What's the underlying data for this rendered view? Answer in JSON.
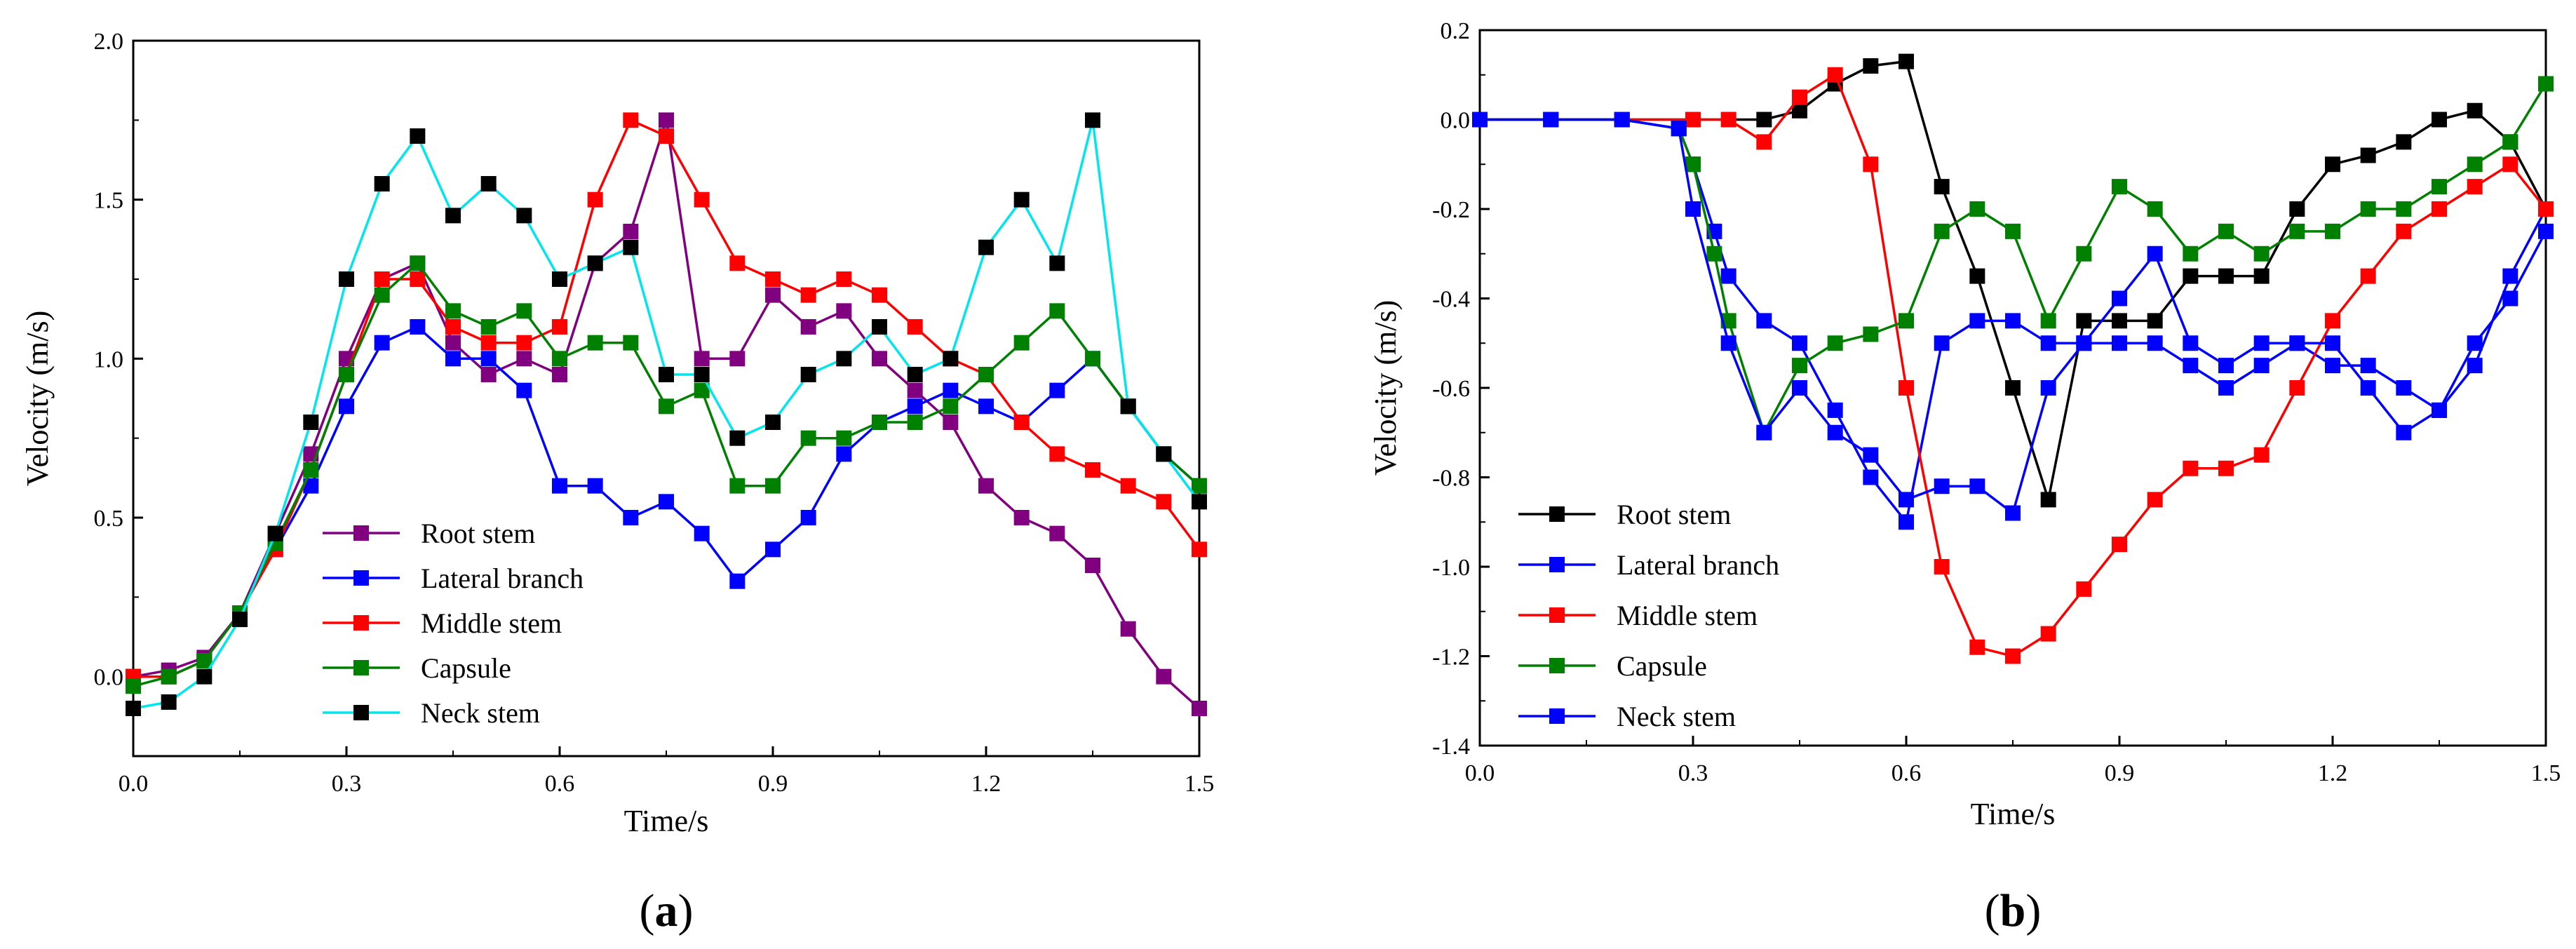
{
  "chart_data": [
    {
      "id": "a",
      "type": "line",
      "caption": {
        "open": "(",
        "letter": "a",
        "close": ")"
      },
      "xlabel": "Time/s",
      "ylabel": "Velocity (m/s)",
      "xlim": [
        0,
        1.5
      ],
      "ylim": [
        -0.25,
        2.0
      ],
      "xticks": [
        0.0,
        0.3,
        0.6,
        0.9,
        1.2,
        1.5
      ],
      "xtick_labels": [
        "0.0",
        "0.3",
        "0.6",
        "0.9",
        "1.2",
        "1.5"
      ],
      "yticks": [
        0.0,
        0.5,
        1.0,
        1.5,
        2.0
      ],
      "ytick_labels": [
        "0.0",
        "0.5",
        "1.0",
        "1.5",
        "2.0"
      ],
      "legend_position": "bottom-left",
      "series": [
        {
          "name": "Root stem",
          "line_color": "#800080",
          "marker_color": "#800080",
          "x": [
            0,
            0.05,
            0.1,
            0.15,
            0.2,
            0.25,
            0.3,
            0.35,
            0.4,
            0.45,
            0.5,
            0.55,
            0.6,
            0.65,
            0.7,
            0.75,
            0.8,
            0.85,
            0.9,
            0.95,
            1.0,
            1.05,
            1.1,
            1.15,
            1.2,
            1.25,
            1.3,
            1.35,
            1.4,
            1.45,
            1.5
          ],
          "y": [
            0,
            0.02,
            0.06,
            0.2,
            0.45,
            0.7,
            1.0,
            1.25,
            1.3,
            1.05,
            0.95,
            1.0,
            0.95,
            1.3,
            1.4,
            1.75,
            1.0,
            1.0,
            1.2,
            1.1,
            1.15,
            1.0,
            0.9,
            0.8,
            0.6,
            0.5,
            0.45,
            0.35,
            0.15,
            0.0,
            -0.1
          ]
        },
        {
          "name": "Lateral branch",
          "line_color": "#0000FF",
          "marker_color": "#0000FF",
          "x": [
            0,
            0.05,
            0.1,
            0.15,
            0.2,
            0.25,
            0.3,
            0.35,
            0.4,
            0.45,
            0.5,
            0.55,
            0.6,
            0.65,
            0.7,
            0.75,
            0.8,
            0.85,
            0.9,
            0.95,
            1.0,
            1.05,
            1.1,
            1.15,
            1.2,
            1.25,
            1.3,
            1.35,
            1.4,
            1.45,
            1.5
          ],
          "y": [
            0,
            0.0,
            0.05,
            0.2,
            0.4,
            0.6,
            0.85,
            1.05,
            1.1,
            1.0,
            1.0,
            0.9,
            0.6,
            0.6,
            0.5,
            0.55,
            0.45,
            0.3,
            0.4,
            0.5,
            0.7,
            0.8,
            0.85,
            0.9,
            0.85,
            0.8,
            0.9,
            1.0,
            0.85,
            0.7,
            0.6
          ]
        },
        {
          "name": "Middle stem",
          "line_color": "#FF0000",
          "marker_color": "#FF0000",
          "x": [
            0,
            0.05,
            0.1,
            0.15,
            0.2,
            0.25,
            0.3,
            0.35,
            0.4,
            0.45,
            0.5,
            0.55,
            0.6,
            0.65,
            0.7,
            0.75,
            0.8,
            0.85,
            0.9,
            0.95,
            1.0,
            1.05,
            1.1,
            1.15,
            1.2,
            1.25,
            1.3,
            1.35,
            1.4,
            1.45,
            1.5
          ],
          "y": [
            0,
            0.0,
            0.05,
            0.2,
            0.4,
            0.65,
            0.95,
            1.25,
            1.25,
            1.1,
            1.05,
            1.05,
            1.1,
            1.5,
            1.75,
            1.7,
            1.5,
            1.3,
            1.25,
            1.2,
            1.25,
            1.2,
            1.1,
            1.0,
            0.95,
            0.8,
            0.7,
            0.65,
            0.6,
            0.55,
            0.4
          ]
        },
        {
          "name": "Capsule",
          "line_color": "#008000",
          "marker_color": "#008000",
          "x": [
            0,
            0.05,
            0.1,
            0.15,
            0.2,
            0.25,
            0.3,
            0.35,
            0.4,
            0.45,
            0.5,
            0.55,
            0.6,
            0.65,
            0.7,
            0.75,
            0.8,
            0.85,
            0.9,
            0.95,
            1.0,
            1.05,
            1.1,
            1.15,
            1.2,
            1.25,
            1.3,
            1.35,
            1.4,
            1.45,
            1.5
          ],
          "y": [
            -0.03,
            0.0,
            0.05,
            0.2,
            0.42,
            0.65,
            0.95,
            1.2,
            1.3,
            1.15,
            1.1,
            1.15,
            1.0,
            1.05,
            1.05,
            0.85,
            0.9,
            0.6,
            0.6,
            0.75,
            0.75,
            0.8,
            0.8,
            0.85,
            0.95,
            1.05,
            1.15,
            1.0,
            0.85,
            0.7,
            0.6
          ]
        },
        {
          "name": "Neck stem",
          "line_color": "#00E5EE",
          "marker_color": "#000000",
          "x": [
            0,
            0.05,
            0.1,
            0.15,
            0.2,
            0.25,
            0.3,
            0.35,
            0.4,
            0.45,
            0.5,
            0.55,
            0.6,
            0.65,
            0.7,
            0.75,
            0.8,
            0.85,
            0.9,
            0.95,
            1.0,
            1.05,
            1.1,
            1.15,
            1.2,
            1.25,
            1.3,
            1.35,
            1.4,
            1.45,
            1.5
          ],
          "y": [
            -0.1,
            -0.08,
            0.0,
            0.18,
            0.45,
            0.8,
            1.25,
            1.55,
            1.7,
            1.45,
            1.55,
            1.45,
            1.25,
            1.3,
            1.35,
            0.95,
            0.95,
            0.75,
            0.8,
            0.95,
            1.0,
            1.1,
            0.95,
            1.0,
            1.35,
            1.5,
            1.3,
            1.75,
            0.85,
            0.7,
            0.55
          ]
        }
      ]
    },
    {
      "id": "b",
      "type": "line",
      "caption": {
        "open": "(",
        "letter": "b",
        "close": ")"
      },
      "xlabel": "Time/s",
      "ylabel": "Velocity (m/s)",
      "xlim": [
        0,
        1.5
      ],
      "ylim": [
        -1.4,
        0.2
      ],
      "xticks": [
        0.0,
        0.3,
        0.6,
        0.9,
        1.2,
        1.5
      ],
      "xtick_labels": [
        "0.0",
        "0.3",
        "0.6",
        "0.9",
        "1.2",
        "1.5"
      ],
      "yticks": [
        0.2,
        0.0,
        -0.2,
        -0.4,
        -0.6,
        -0.8,
        -1.0,
        -1.2,
        -1.4
      ],
      "ytick_labels": [
        "0.2",
        "0.0",
        "-0.2",
        "-0.4",
        "-0.6",
        "-0.8",
        "-1.0",
        "-1.2",
        "-1.4"
      ],
      "legend_position": "left",
      "series": [
        {
          "name": "Root stem",
          "line_color": "#000000",
          "marker_color": "#000000",
          "x": [
            0,
            0.1,
            0.2,
            0.3,
            0.4,
            0.45,
            0.5,
            0.55,
            0.6,
            0.65,
            0.7,
            0.75,
            0.8,
            0.85,
            0.9,
            0.95,
            1.0,
            1.05,
            1.1,
            1.15,
            1.2,
            1.25,
            1.3,
            1.35,
            1.4,
            1.45,
            1.5
          ],
          "y": [
            0,
            0,
            0,
            0,
            0,
            0.02,
            0.08,
            0.12,
            0.13,
            -0.15,
            -0.35,
            -0.6,
            -0.85,
            -0.45,
            -0.45,
            -0.45,
            -0.35,
            -0.35,
            -0.35,
            -0.2,
            -0.1,
            -0.08,
            -0.05,
            0.0,
            0.02,
            -0.05,
            -0.2
          ]
        },
        {
          "name": "Lateral branch",
          "line_color": "#0000FF",
          "marker_color": "#0000FF",
          "x": [
            0,
            0.1,
            0.2,
            0.28,
            0.3,
            0.33,
            0.35,
            0.4,
            0.45,
            0.5,
            0.55,
            0.6,
            0.65,
            0.7,
            0.75,
            0.8,
            0.85,
            0.9,
            0.95,
            1.0,
            1.05,
            1.1,
            1.15,
            1.2,
            1.25,
            1.3,
            1.35,
            1.4,
            1.45,
            1.5
          ],
          "y": [
            0,
            0,
            0,
            -0.02,
            -0.1,
            -0.25,
            -0.35,
            -0.45,
            -0.5,
            -0.65,
            -0.8,
            -0.9,
            -0.5,
            -0.45,
            -0.45,
            -0.5,
            -0.5,
            -0.4,
            -0.3,
            -0.5,
            -0.55,
            -0.5,
            -0.5,
            -0.55,
            -0.55,
            -0.6,
            -0.65,
            -0.55,
            -0.35,
            -0.2
          ]
        },
        {
          "name": "Middle stem",
          "line_color": "#FF0000",
          "marker_color": "#FF0000",
          "x": [
            0,
            0.1,
            0.2,
            0.3,
            0.35,
            0.4,
            0.45,
            0.5,
            0.55,
            0.6,
            0.65,
            0.7,
            0.75,
            0.8,
            0.85,
            0.9,
            0.95,
            1.0,
            1.05,
            1.1,
            1.15,
            1.2,
            1.25,
            1.3,
            1.35,
            1.4,
            1.45,
            1.5
          ],
          "y": [
            0,
            0,
            0,
            0,
            0.0,
            -0.05,
            0.05,
            0.1,
            -0.1,
            -0.6,
            -1.0,
            -1.18,
            -1.2,
            -1.15,
            -1.05,
            -0.95,
            -0.85,
            -0.78,
            -0.78,
            -0.75,
            -0.6,
            -0.45,
            -0.35,
            -0.25,
            -0.2,
            -0.15,
            -0.1,
            -0.2
          ]
        },
        {
          "name": "Capsule",
          "line_color": "#008000",
          "marker_color": "#008000",
          "x": [
            0,
            0.1,
            0.2,
            0.28,
            0.3,
            0.33,
            0.35,
            0.4,
            0.45,
            0.5,
            0.55,
            0.6,
            0.65,
            0.7,
            0.75,
            0.8,
            0.85,
            0.9,
            0.95,
            1.0,
            1.05,
            1.1,
            1.15,
            1.2,
            1.25,
            1.3,
            1.35,
            1.4,
            1.45,
            1.5
          ],
          "y": [
            0,
            0,
            0,
            -0.02,
            -0.1,
            -0.3,
            -0.45,
            -0.7,
            -0.55,
            -0.5,
            -0.48,
            -0.45,
            -0.25,
            -0.2,
            -0.25,
            -0.45,
            -0.3,
            -0.15,
            -0.2,
            -0.3,
            -0.25,
            -0.3,
            -0.25,
            -0.25,
            -0.2,
            -0.2,
            -0.15,
            -0.1,
            -0.05,
            0.08
          ]
        },
        {
          "name": "Neck stem",
          "line_color": "#0000FF",
          "marker_color": "#0000FF",
          "x": [
            0,
            0.1,
            0.2,
            0.28,
            0.3,
            0.35,
            0.4,
            0.45,
            0.5,
            0.55,
            0.6,
            0.65,
            0.7,
            0.75,
            0.8,
            0.85,
            0.9,
            0.95,
            1.0,
            1.05,
            1.1,
            1.15,
            1.2,
            1.25,
            1.3,
            1.35,
            1.4,
            1.45,
            1.5
          ],
          "y": [
            0,
            0,
            0,
            -0.02,
            -0.2,
            -0.5,
            -0.7,
            -0.6,
            -0.7,
            -0.75,
            -0.85,
            -0.82,
            -0.82,
            -0.88,
            -0.6,
            -0.5,
            -0.5,
            -0.5,
            -0.55,
            -0.6,
            -0.55,
            -0.5,
            -0.5,
            -0.6,
            -0.7,
            -0.65,
            -0.5,
            -0.4,
            -0.25
          ]
        }
      ]
    }
  ]
}
